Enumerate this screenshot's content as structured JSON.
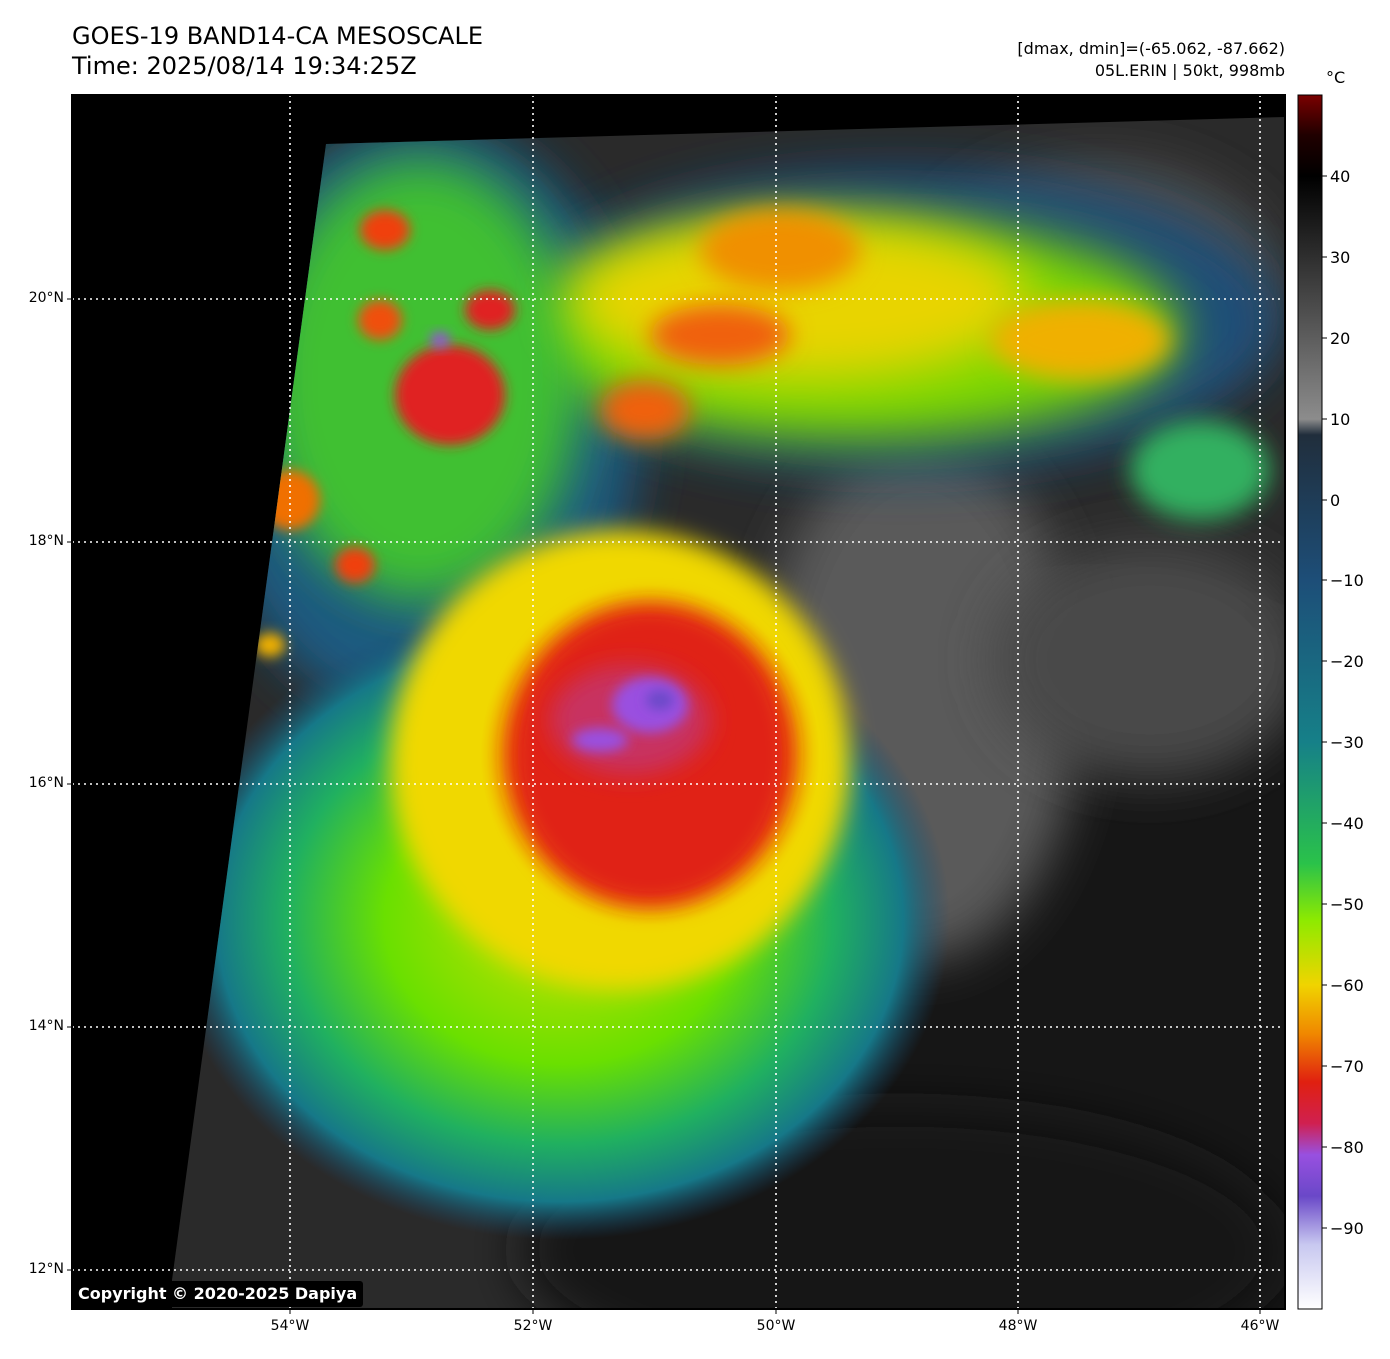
{
  "header": {
    "title_line1": "GOES-19 BAND14-CA MESOSCALE",
    "title_line2": "Time: 2025/08/14 19:34:25Z",
    "info_line1": "[dmax, dmin]=(-65.062, -87.662)",
    "info_line2": "05L.ERIN | 50kt, 998mb"
  },
  "map": {
    "latitude_labels": [
      "20°N",
      "18°N",
      "16°N",
      "14°N",
      "12°N"
    ],
    "longitude_labels": [
      "54°W",
      "52°W",
      "50°W",
      "48°W",
      "46°W"
    ],
    "storm_center": {
      "lon": -50.9,
      "lat": 16.6
    },
    "gridlines": "dotted white"
  },
  "colorbar": {
    "unit": "°C",
    "ticks": [
      "40",
      "30",
      "20",
      "10",
      "0",
      "−10",
      "−20",
      "−30",
      "−40",
      "−50",
      "−60",
      "−70",
      "−80",
      "−90"
    ],
    "range": [
      -100,
      50
    ],
    "stops": [
      {
        "v": 50,
        "c": "#7a0000"
      },
      {
        "v": 45,
        "c": "#200000"
      },
      {
        "v": 40,
        "c": "#000000"
      },
      {
        "v": 10,
        "c": "#8c8c8c"
      },
      {
        "v": 8,
        "c": "#202e3c"
      },
      {
        "v": -10,
        "c": "#1d4e78"
      },
      {
        "v": -30,
        "c": "#168088"
      },
      {
        "v": -45,
        "c": "#2ac24a"
      },
      {
        "v": -52,
        "c": "#8eea00"
      },
      {
        "v": -60,
        "c": "#f0d400"
      },
      {
        "v": -66,
        "c": "#f08800"
      },
      {
        "v": -72,
        "c": "#e02010"
      },
      {
        "v": -77,
        "c": "#d02050"
      },
      {
        "v": -81,
        "c": "#9850e0"
      },
      {
        "v": -86,
        "c": "#6a48c8"
      },
      {
        "v": -92,
        "c": "#c8c8f0"
      },
      {
        "v": -100,
        "c": "#ffffff"
      }
    ]
  },
  "footer": {
    "copyright": "Copyright © 2020-2025 Dapiya"
  }
}
